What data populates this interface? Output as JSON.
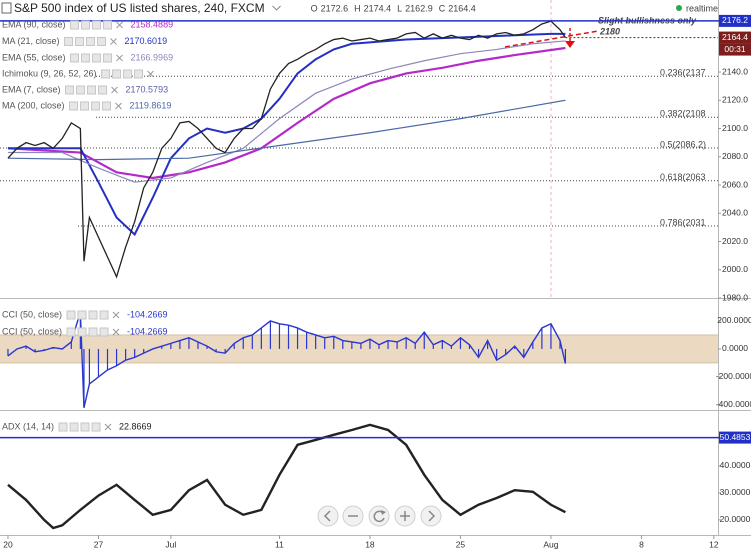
{
  "chart_data": [
    {
      "type": "line",
      "title": "S&P 500 index of US listed shares, 240, FXCM",
      "ohlc": [
        {
          "label": "O",
          "value": 2172.6
        },
        {
          "label": "H",
          "value": 2174.4
        },
        {
          "label": "L",
          "value": 2162.9
        },
        {
          "label": "C",
          "value": 2164.4
        }
      ],
      "status": "realtime",
      "xlim": [
        -0.44,
        39.23
      ],
      "ylim": [
        1980,
        2191
      ],
      "yticks": [
        {
          "value": 1980,
          "label": "1980.0"
        },
        {
          "value": 2000,
          "label": "2000.0"
        },
        {
          "value": 2020,
          "label": "2020.0"
        },
        {
          "value": 2040,
          "label": "2040.0"
        },
        {
          "value": 2060,
          "label": "2060.0"
        },
        {
          "value": 2080,
          "label": "2080.0"
        },
        {
          "value": 2100,
          "label": "2100.0"
        },
        {
          "value": 2120,
          "label": "2120.0"
        },
        {
          "value": 2140,
          "label": "2140.0"
        }
      ],
      "color": "#222222",
      "x": [
        0,
        0.5,
        1,
        1.5,
        2,
        2.5,
        3,
        3.5,
        4,
        4.2,
        4.5,
        5,
        5.5,
        6,
        6.5,
        7,
        7.5,
        8,
        8.5,
        9,
        9.5,
        10,
        10.5,
        11,
        11.5,
        12,
        12.5,
        13,
        13.5,
        14,
        14.5,
        15,
        15.5,
        16,
        16.5,
        17,
        17.5,
        18,
        18.5,
        19,
        19.5,
        20,
        20.5,
        21,
        21.5,
        22,
        22.5,
        23,
        23.5,
        24,
        24.5,
        25,
        25.5,
        26,
        26.5,
        27,
        27.5,
        28,
        28.5,
        29,
        29.5,
        30,
        30.5,
        30.8
      ],
      "values": [
        2079,
        2086,
        2090,
        2088,
        2090,
        2086,
        2093,
        2104,
        2100,
        2006,
        2037,
        2023,
        2009,
        1995,
        2016,
        2034,
        2058,
        2069,
        2086,
        2093,
        2104,
        2105,
        2100,
        2093,
        2086,
        2083,
        2093,
        2100,
        2100,
        2107,
        2128,
        2139,
        2146,
        2149,
        2153,
        2156,
        2160,
        2163,
        2164,
        2162,
        2163,
        2164,
        2162,
        2163,
        2164,
        2167,
        2168,
        2164,
        2167,
        2164,
        2166,
        2164,
        2163,
        2166,
        2164,
        2167,
        2168,
        2166,
        2167,
        2170,
        2174,
        2176,
        2170,
        2164.4
      ],
      "last_price": 2164.4,
      "countdown": "00:31",
      "resistance": 2176.2,
      "fib_levels": [
        {
          "value": 2137,
          "label": "0.236(2137"
        },
        {
          "value": 2108,
          "label": "0.382(2108"
        },
        {
          "value": 2086.2,
          "label": "0.5(2086.2)"
        },
        {
          "value": 2063,
          "label": "0.618(2063"
        },
        {
          "value": 2031,
          "label": "0.786(2031"
        }
      ],
      "annotations": [
        "Slight bullishness only",
        "2180"
      ],
      "series": [
        {
          "name": "EMA (90, close)",
          "last": 2158.4889,
          "color": "#b42ac8",
          "x": [
            0,
            4,
            6,
            8,
            10,
            12,
            14,
            16,
            18,
            20,
            22,
            24,
            26,
            28,
            30.8
          ],
          "values": [
            2086,
            2083,
            2069,
            2065,
            2069,
            2076,
            2086,
            2104,
            2121,
            2132,
            2139,
            2143,
            2148,
            2152,
            2157
          ]
        },
        {
          "name": "MA (21, close)",
          "last": 2170.6019,
          "color": "#2430c4",
          "x": [
            0,
            2,
            4,
            5,
            6,
            7,
            8,
            9,
            10,
            11,
            12,
            13,
            14,
            15,
            16,
            17,
            18,
            19,
            20,
            22,
            24,
            26,
            28,
            30,
            30.8
          ],
          "values": [
            2086,
            2086,
            2086,
            2062,
            2037,
            2025,
            2051,
            2079,
            2093,
            2100,
            2097,
            2100,
            2107,
            2121,
            2139,
            2149,
            2156,
            2160,
            2161,
            2163,
            2164,
            2165,
            2166,
            2167,
            2167
          ]
        },
        {
          "name": "EMA (55, close)",
          "last": 2166.9969,
          "color": "#8d86bd",
          "x": [
            0,
            3,
            5,
            7,
            9,
            11,
            13,
            15,
            17,
            19,
            21,
            23,
            25,
            27,
            29,
            30.8
          ],
          "values": [
            2083,
            2083,
            2072,
            2062,
            2065,
            2076,
            2086,
            2107,
            2125,
            2135,
            2142,
            2148,
            2153,
            2156,
            2160,
            2162
          ]
        },
        {
          "name": "Ichimoku (9, 26, 52, 26)",
          "color": "#9a9aa8"
        },
        {
          "name": "EMA (7, close)",
          "last": 2170.5793,
          "color": "#5b5fa8"
        },
        {
          "name": "MA (200, close)",
          "last": 2119.8619,
          "color": "#4a6aa8",
          "x": [
            0,
            5,
            10,
            15,
            20,
            25,
            30.8
          ],
          "values": [
            2079,
            2078,
            2079,
            2088,
            2097,
            2107,
            2120
          ]
        }
      ]
    },
    {
      "type": "line",
      "xlim": [
        -0.44,
        39.23
      ],
      "ylim": [
        -436,
        364
      ],
      "yticks": [
        {
          "value": 200,
          "label": "200.0000"
        },
        {
          "value": 0,
          "label": "0.0000"
        },
        {
          "value": -200,
          "label": "-200.0000"
        },
        {
          "value": -400,
          "label": "-400.0000"
        }
      ],
      "band": [
        -100,
        100
      ],
      "x": [
        0,
        0.5,
        1,
        1.5,
        2,
        2.5,
        3,
        3.5,
        4,
        4.2,
        4.5,
        5,
        5.5,
        6,
        6.5,
        7,
        7.5,
        8,
        8.5,
        9,
        9.5,
        10,
        10.5,
        11,
        11.5,
        12,
        12.5,
        13,
        13.5,
        14,
        14.5,
        15,
        15.5,
        16,
        16.5,
        17,
        17.5,
        18,
        18.5,
        19,
        19.5,
        20,
        20.5,
        21,
        21.5,
        22,
        22.5,
        23,
        23.5,
        24,
        24.5,
        25,
        25.5,
        26,
        26.5,
        27,
        27.5,
        28,
        28.5,
        29,
        29.5,
        30,
        30.5,
        30.8
      ],
      "series": [
        {
          "name": "CCI (50, close)",
          "last": -104.2669,
          "color": "#2a36d0",
          "type": "bar",
          "values": [
            -50,
            0,
            20,
            -20,
            -10,
            10,
            0,
            50,
            264,
            -420,
            -250,
            -200,
            -150,
            -120,
            -80,
            -60,
            -30,
            0,
            20,
            40,
            60,
            80,
            50,
            20,
            -20,
            -30,
            40,
            80,
            100,
            150,
            200,
            180,
            170,
            150,
            120,
            100,
            80,
            90,
            60,
            50,
            40,
            70,
            30,
            60,
            50,
            80,
            40,
            120,
            30,
            60,
            20,
            80,
            30,
            -60,
            60,
            -80,
            -40,
            20,
            -60,
            50,
            150,
            180,
            60,
            -104.2669
          ]
        },
        {
          "name": "CCI (50, close)",
          "last": -104.2669,
          "color": "#2a36d0",
          "type": "line",
          "values": [
            -50,
            0,
            20,
            -20,
            -10,
            10,
            0,
            50,
            264,
            -420,
            -250,
            -200,
            -150,
            -120,
            -80,
            -60,
            -30,
            0,
            20,
            40,
            60,
            80,
            50,
            20,
            -20,
            -30,
            40,
            80,
            100,
            150,
            200,
            180,
            170,
            150,
            120,
            100,
            80,
            90,
            60,
            50,
            40,
            70,
            30,
            60,
            50,
            80,
            40,
            120,
            30,
            60,
            20,
            80,
            30,
            -60,
            60,
            -80,
            -40,
            20,
            -60,
            50,
            150,
            180,
            60,
            -104.2669
          ]
        }
      ]
    },
    {
      "type": "line",
      "xlim": [
        -0.44,
        39.23
      ],
      "ylim": [
        14.4,
        60.7
      ],
      "yticks": [
        {
          "value": 20,
          "label": "20.0000"
        },
        {
          "value": 30,
          "label": "30.0000"
        },
        {
          "value": 40,
          "label": "40.0000"
        }
      ],
      "level": 50.4853,
      "xticks": [
        {
          "value": 0,
          "label": "20"
        },
        {
          "value": 5,
          "label": "27"
        },
        {
          "value": 9,
          "label": "Jul"
        },
        {
          "value": 15,
          "label": "11"
        },
        {
          "value": 20,
          "label": "18"
        },
        {
          "value": 25,
          "label": "25"
        },
        {
          "value": 30,
          "label": "Aug"
        },
        {
          "value": 35,
          "label": "8"
        },
        {
          "value": 39,
          "label": "12"
        }
      ],
      "x": [
        0,
        1,
        2,
        2.5,
        3,
        4,
        5,
        6,
        7,
        8,
        9,
        10,
        11,
        12,
        13,
        14,
        15,
        16,
        17,
        18,
        19,
        20,
        21,
        22,
        23,
        24,
        25,
        26,
        27,
        28,
        29,
        30,
        30.8
      ],
      "series": [
        {
          "name": "ADX (14, 14)",
          "last": 22.8669,
          "color": "#222222",
          "type": "line",
          "values": [
            33,
            27.4,
            20,
            17,
            18,
            23.7,
            29,
            33,
            27.4,
            21.9,
            23.7,
            31,
            34.8,
            25.6,
            21.9,
            23.7,
            36.7,
            47.8,
            49.6,
            51.5,
            53.3,
            55.2,
            53.3,
            47.8,
            36.7,
            27.4,
            21.9,
            25.6,
            28.1,
            31,
            30.4,
            25.6,
            22.8669
          ]
        }
      ]
    }
  ]
}
